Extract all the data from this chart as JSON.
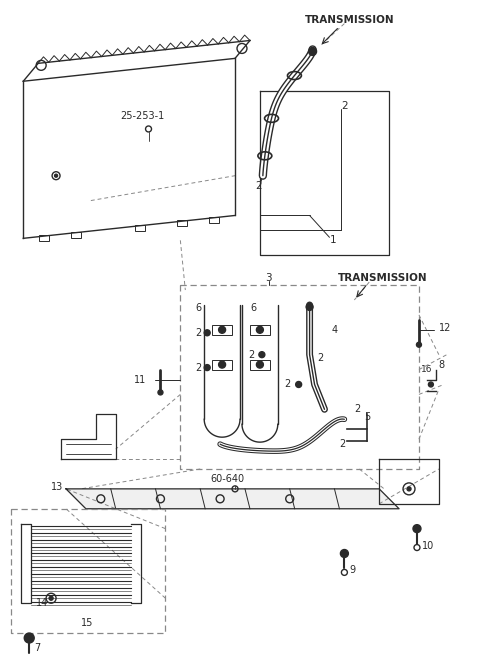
{
  "bg_color": "#ffffff",
  "lc": "#2a2a2a",
  "lc_gray": "#888888",
  "figsize": [
    4.8,
    6.56
  ],
  "dpi": 100
}
